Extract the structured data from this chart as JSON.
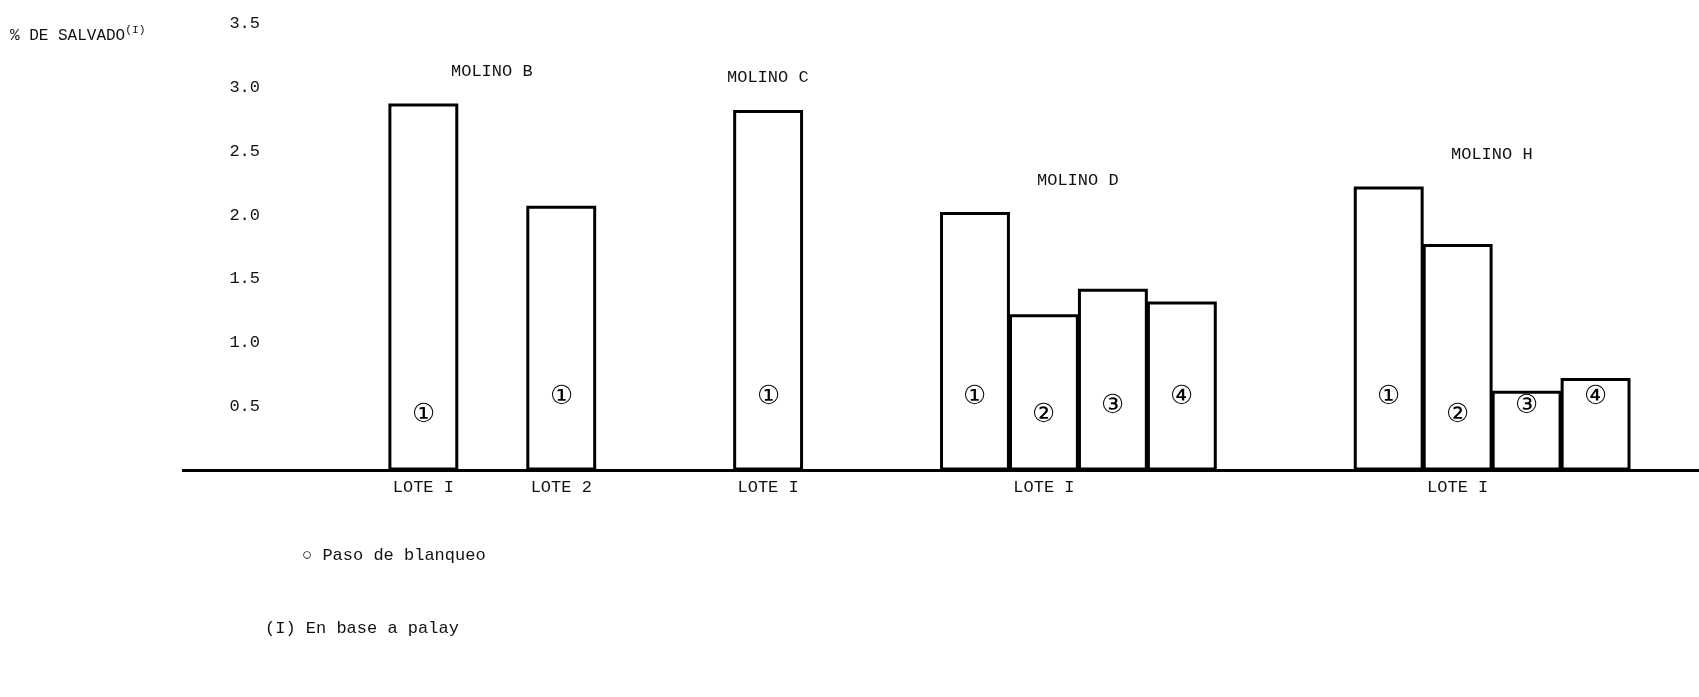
{
  "chart_data": {
    "type": "bar",
    "ylabel": "% DE SALVADO$^{(I)}$",
    "categories": [
      null,
      null,
      null,
      "LOTE I",
      null,
      "LOTE 2",
      null,
      null,
      "LOTE I",
      null,
      null,
      null,
      "LOTE I",
      null,
      null,
      null,
      null,
      null,
      "LOTE I",
      null,
      null,
      null
    ],
    "series": [
      {
        "name": "MOLINO B",
        "color": "#ffffff",
        "values": [
          null,
          null,
          null,
          2.85,
          null,
          2.05,
          null,
          null,
          null,
          null,
          null,
          null,
          null,
          null,
          null,
          null,
          null,
          null,
          null,
          null,
          null,
          null
        ]
      },
      {
        "name": "MOLINO C",
        "color": "#ffffff",
        "values": [
          null,
          null,
          null,
          null,
          null,
          null,
          null,
          null,
          2.8,
          null,
          null,
          null,
          null,
          null,
          null,
          null,
          null,
          null,
          null,
          null,
          null,
          null
        ]
      },
      {
        "name": "MOLINO D",
        "color": "#ffffff",
        "values": [
          null,
          null,
          null,
          null,
          null,
          null,
          null,
          null,
          null,
          null,
          null,
          2.0,
          1.2,
          1.4,
          1.3,
          null,
          null,
          null,
          null,
          null,
          null,
          null
        ]
      },
      {
        "name": "MOLINO H",
        "color": "#ffffff",
        "values": [
          null,
          null,
          null,
          null,
          null,
          null,
          null,
          null,
          null,
          null,
          null,
          null,
          null,
          null,
          null,
          null,
          null,
          2.2,
          1.75,
          0.6,
          0.7,
          null
        ]
      }
    ],
    "ylim": [
      0,
      3.5
    ],
    "yticks": [
      0.5,
      {
        "value": 1,
        "label": "1.0"
      },
      1.5,
      {
        "value": 2,
        "label": "2.0"
      },
      2.5,
      {
        "value": 3,
        "label": "3.0"
      },
      3.5
    ],
    "grid": false,
    "legend": false,
    "annotations": [
      "①",
      "①",
      "①",
      "①",
      "②",
      "③",
      "④",
      "①",
      "②",
      "③",
      "④",
      "○ Paso de blanqueo",
      "(I) En base a palay"
    ]
  }
}
